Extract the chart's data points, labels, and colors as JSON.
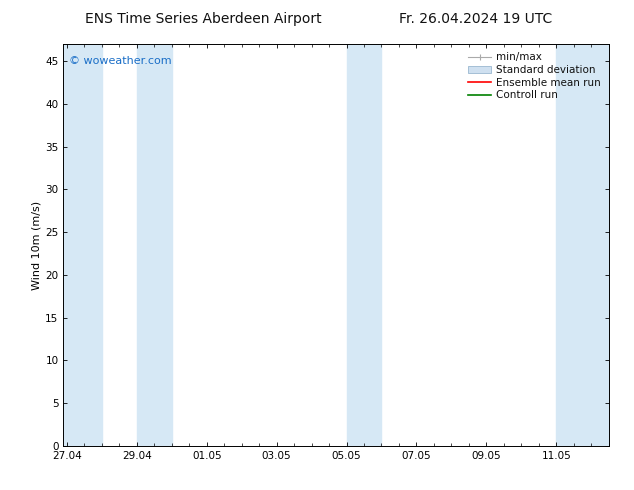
{
  "title_left": "ENS Time Series Aberdeen Airport",
  "title_right": "Fr. 26.04.2024 19 UTC",
  "ylabel": "Wind 10m (m/s)",
  "ylim": [
    0,
    47
  ],
  "yticks": [
    0,
    5,
    10,
    15,
    20,
    25,
    30,
    35,
    40,
    45
  ],
  "xtick_labels": [
    "27.04",
    "29.04",
    "01.05",
    "03.05",
    "05.05",
    "07.05",
    "09.05",
    "11.05"
  ],
  "xtick_positions": [
    0,
    2,
    4,
    6,
    8,
    10,
    12,
    14
  ],
  "xlim": [
    -0.1,
    15.5
  ],
  "watermark": "© woweather.com",
  "watermark_color": "#1a6ec7",
  "bg_color": "#ffffff",
  "plot_bg_color": "#ffffff",
  "shaded_bands": [
    {
      "x_start": -0.1,
      "x_end": 1.0,
      "color": "#d6e8f5"
    },
    {
      "x_start": 2.0,
      "x_end": 3.0,
      "color": "#d6e8f5"
    },
    {
      "x_start": 8.0,
      "x_end": 9.0,
      "color": "#d6e8f5"
    },
    {
      "x_start": 14.0,
      "x_end": 15.5,
      "color": "#d6e8f5"
    }
  ],
  "legend_items": [
    {
      "label": "min/max",
      "color": "#aaaaaa",
      "style": "errorbar"
    },
    {
      "label": "Standard deviation",
      "color": "#cfe0f0",
      "style": "box"
    },
    {
      "label": "Ensemble mean run",
      "color": "#ff0000",
      "style": "line"
    },
    {
      "label": "Controll run",
      "color": "#008000",
      "style": "line"
    }
  ],
  "title_fontsize": 10,
  "axis_label_fontsize": 8,
  "tick_fontsize": 7.5,
  "legend_fontsize": 7.5,
  "watermark_fontsize": 8,
  "tick_color": "#000000",
  "spine_color": "#000000"
}
